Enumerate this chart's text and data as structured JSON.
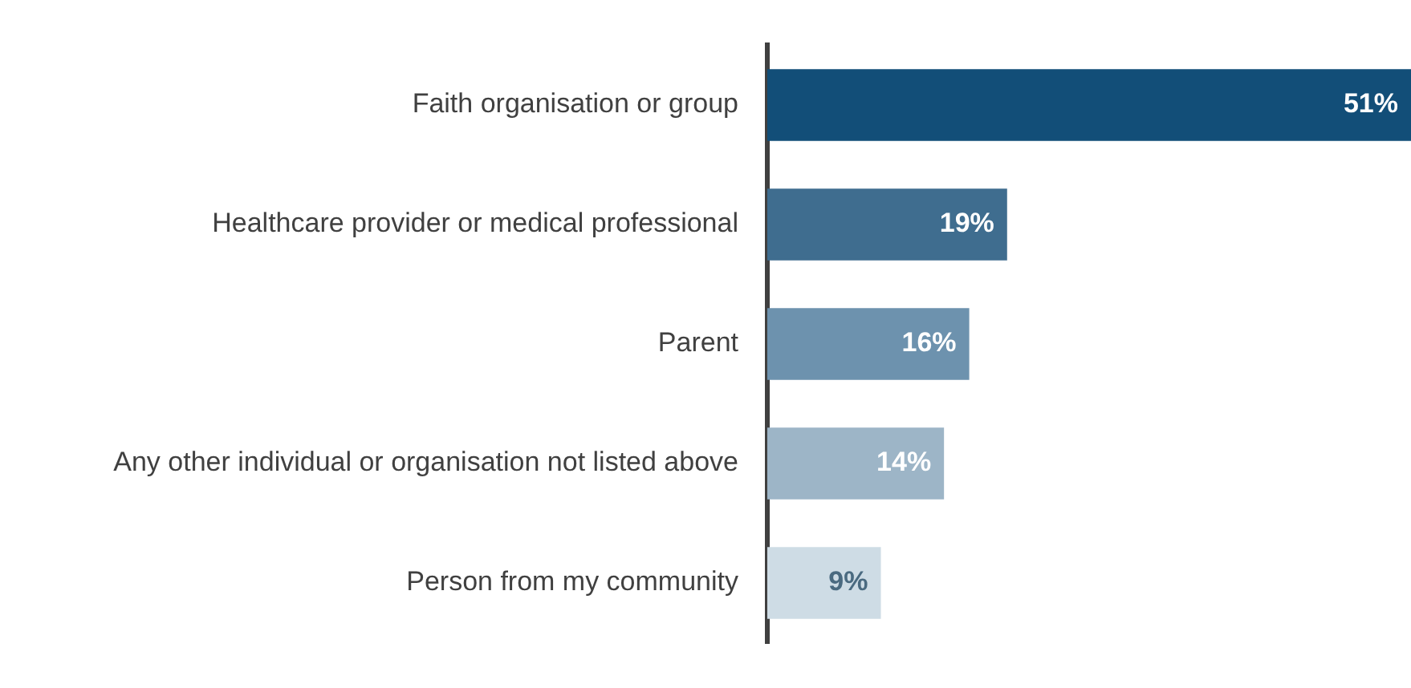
{
  "chart_data": {
    "type": "bar",
    "orientation": "horizontal",
    "categories": [
      "Faith organisation or group",
      "Healthcare provider or medical professional",
      "Parent",
      "Any other individual or organisation not listed above",
      "Person from my community"
    ],
    "values": [
      51,
      19,
      16,
      14,
      9
    ],
    "colors": [
      "#124e78",
      "#3f6d8f",
      "#6d92ae",
      "#9db5c7",
      "#cedce5"
    ],
    "value_labels": [
      "51%",
      "19%",
      "16%",
      "14%",
      "9%"
    ],
    "xlim": [
      0,
      51
    ],
    "tick_labels": "y",
    "grid": false,
    "legend": false
  }
}
